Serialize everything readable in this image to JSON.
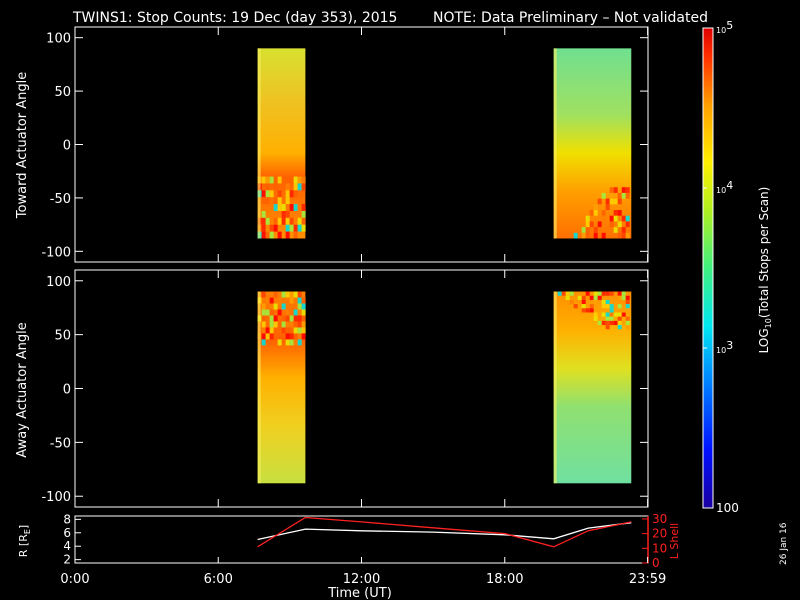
{
  "header": {
    "title": "TWINS1: Stop Counts: 19 Dec (day 353), 2015",
    "note": "NOTE: Data Preliminary – Not validated",
    "note_color": "#ff2020"
  },
  "footer": {
    "date_stamp": "26 Jan 16"
  },
  "colorbar": {
    "label": "LOG10(Total Stops per Scan)",
    "label_main": "LOG",
    "label_sub": "10",
    "label_rest": "(Total Stops per Scan)",
    "range": [
      100,
      100000
    ],
    "scale": "log",
    "ticks": [
      {
        "value": 100000,
        "label": "10",
        "sup": "5"
      },
      {
        "value": 10000,
        "label": "10",
        "sup": "4"
      },
      {
        "value": 1000,
        "label": "10",
        "sup": "3"
      },
      {
        "value": 100,
        "label": "100",
        "sup": ""
      }
    ],
    "colormap": "rainbow"
  },
  "x_axis": {
    "label": "Time (UT)",
    "range_hours": [
      0,
      24
    ],
    "ticks": [
      {
        "value": 0,
        "label": "0:00"
      },
      {
        "value": 6,
        "label": "6:00"
      },
      {
        "value": 12,
        "label": "12:00"
      },
      {
        "value": 18,
        "label": "18:00"
      },
      {
        "value": 23.983,
        "label": "23:59"
      }
    ]
  },
  "chart_data": [
    {
      "type": "heatmap",
      "panel": "toward",
      "ylabel": "Toward Actuator Angle",
      "ylim": [
        -110,
        110
      ],
      "y_ticks": [
        100,
        50,
        0,
        -50,
        -100
      ],
      "data_range_angle": [
        -88,
        90
      ],
      "intervals_hours": [
        [
          7.65,
          9.65
        ],
        [
          20.05,
          23.3
        ]
      ],
      "description_values": "log10 counts ~3.8-4.6; noisy banding at angles below -30 in first interval and below -40 in second"
    },
    {
      "type": "heatmap",
      "panel": "away",
      "ylabel": "Away Actuator Angle",
      "ylim": [
        -110,
        110
      ],
      "y_ticks": [
        100,
        50,
        0,
        -50,
        -100
      ],
      "data_range_angle": [
        -88,
        90
      ],
      "intervals_hours": [
        [
          7.65,
          9.65
        ],
        [
          20.05,
          23.3
        ]
      ],
      "description_values": "log10 counts ~3.6-4.6; noisy banding at angles above 40 in first interval and above 55 in second"
    },
    {
      "type": "line",
      "panel": "ephemeris",
      "ylabel_left": "R [RE]",
      "ylabel_left_main": "R [R",
      "ylabel_left_sub": "E",
      "ylabel_left_end": "]",
      "ylim_left": [
        1.5,
        8.5
      ],
      "y_ticks_left": [
        8,
        6,
        4,
        2
      ],
      "ylabel_right": "L Shell",
      "ylabel_right_color": "#ff2020",
      "ylim_right": [
        0,
        32
      ],
      "y_ticks_right": [
        30,
        20,
        10,
        0
      ],
      "series": [
        {
          "name": "R [RE]",
          "axis": "left",
          "color": "#ffffff",
          "x": [
            7.65,
            9.65,
            12.0,
            15.0,
            18.0,
            20.05,
            21.5,
            23.3
          ],
          "y": [
            5.0,
            6.55,
            6.3,
            6.1,
            5.7,
            5.1,
            6.7,
            7.5
          ]
        },
        {
          "name": "L Shell",
          "axis": "right",
          "color": "#ff2020",
          "x": [
            7.65,
            9.65,
            12.0,
            15.0,
            18.0,
            20.05,
            21.5,
            23.3
          ],
          "y": [
            11,
            31,
            28,
            24,
            20,
            11,
            22,
            28
          ]
        }
      ]
    }
  ]
}
